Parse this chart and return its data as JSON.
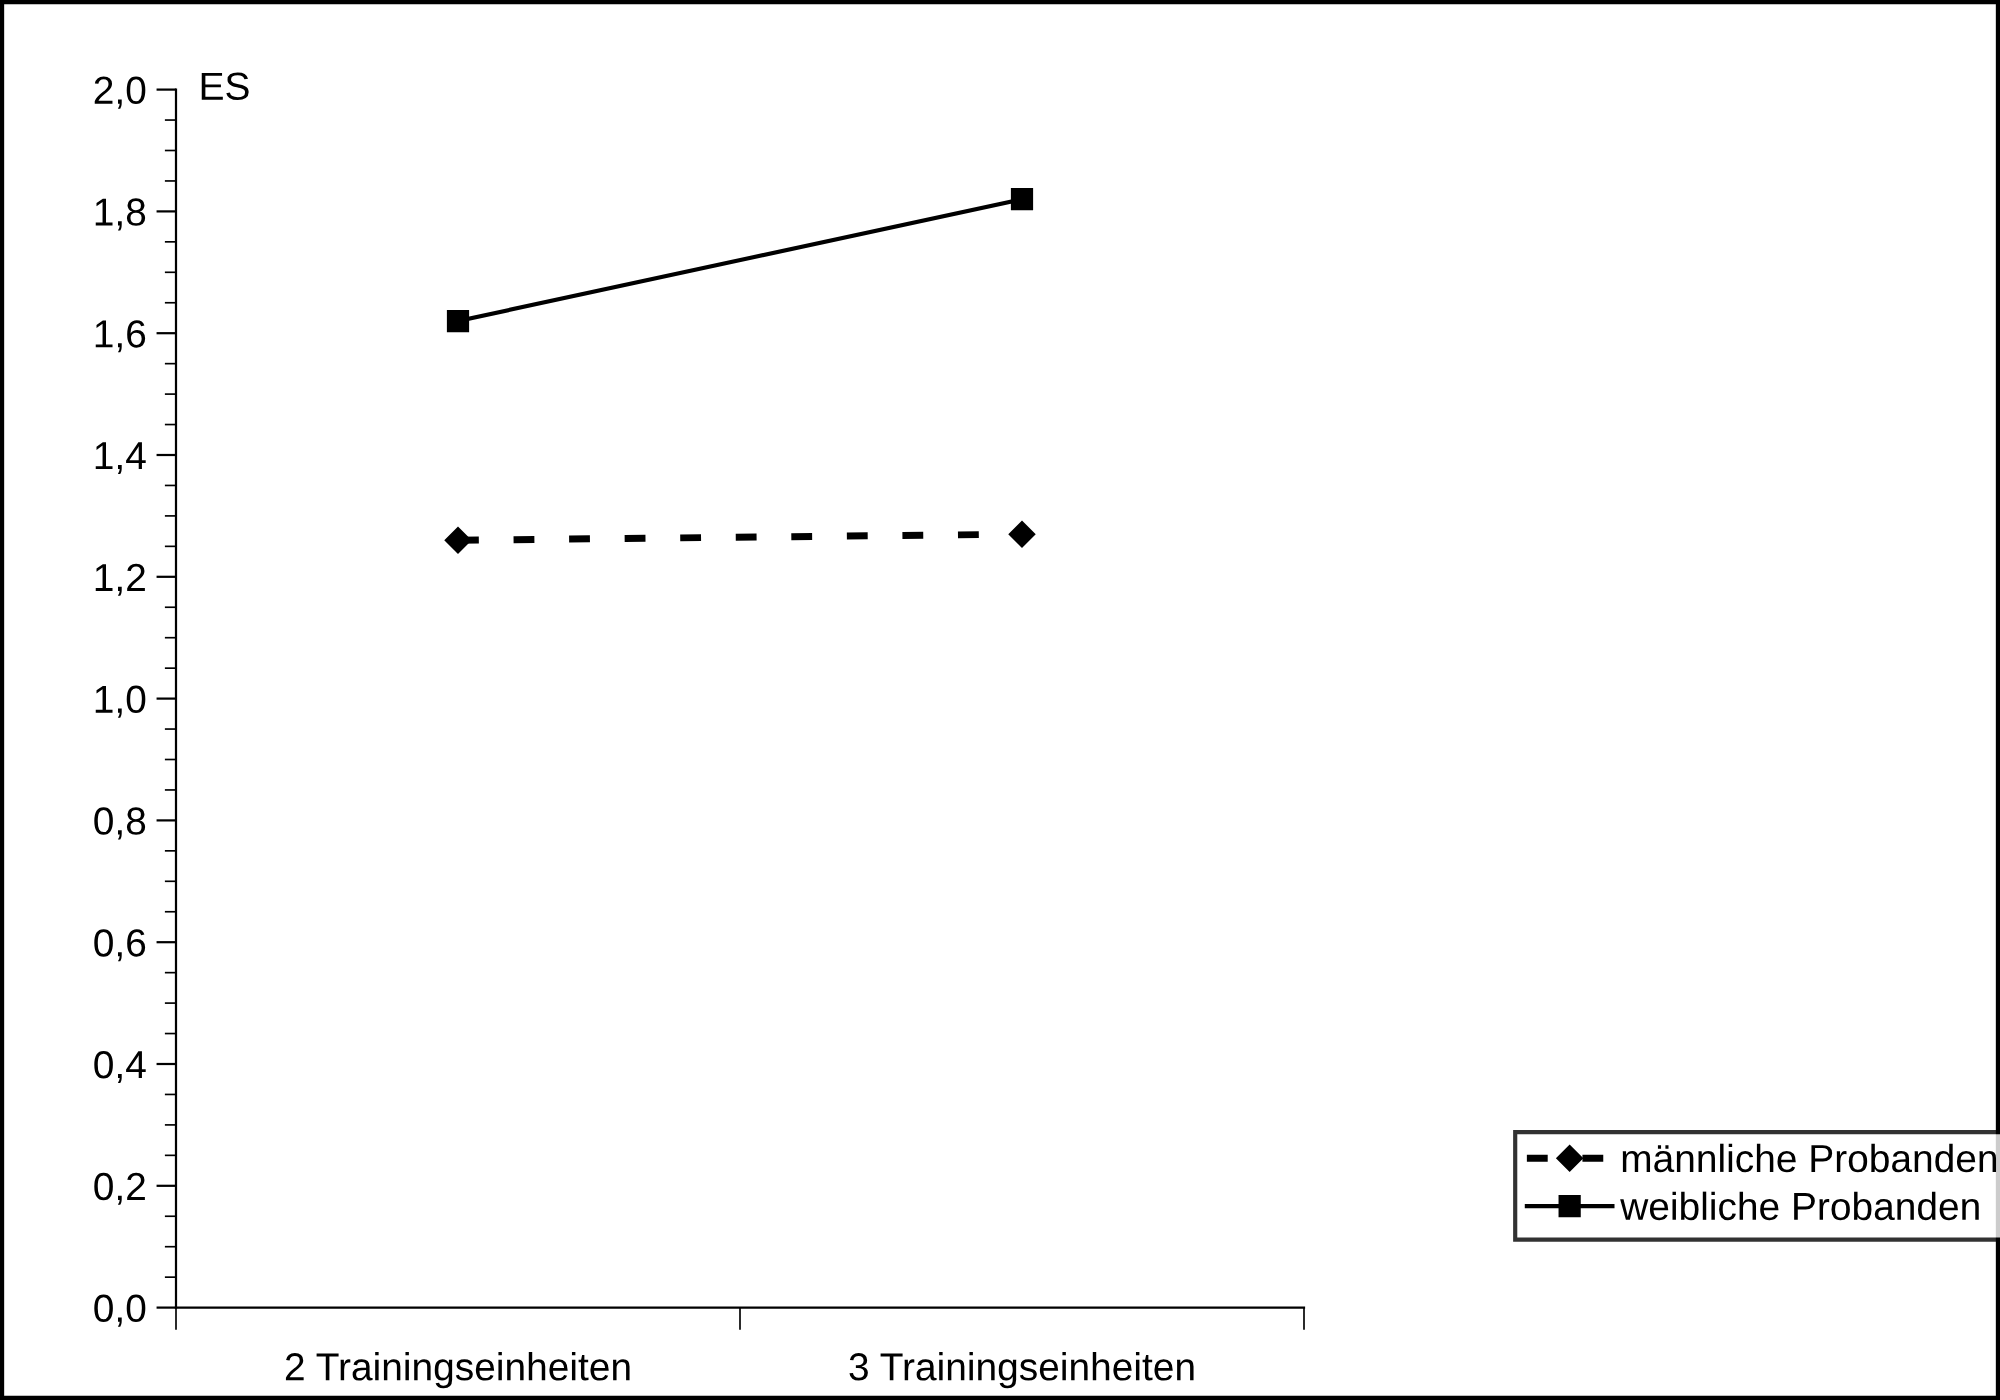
{
  "chart_data": {
    "type": "line",
    "ylabel": "ES",
    "categories": [
      "2 Trainingseinheiten",
      "3 Trainingseinheiten"
    ],
    "series": [
      {
        "name": "männliche Probanden",
        "color": "#000000",
        "values": [
          1.26,
          1.27
        ],
        "marker": "diamond",
        "line_style": "dashed"
      },
      {
        "name": "weibliche Probanden",
        "color": "#000000",
        "values": [
          1.62,
          1.82
        ],
        "marker": "square",
        "line_style": "solid"
      }
    ],
    "ylim": [
      0,
      2
    ],
    "yticks": [
      {
        "value": 0,
        "label": "0,0"
      },
      {
        "value": 0.2,
        "label": "0,2"
      },
      {
        "value": 0.4,
        "label": "0,4"
      },
      {
        "value": 0.6,
        "label": "0,6"
      },
      {
        "value": 0.8,
        "label": "0,8"
      },
      {
        "value": 1.0,
        "label": "1,0"
      },
      {
        "value": 1.2,
        "label": "1,2"
      },
      {
        "value": 1.4,
        "label": "1,4"
      },
      {
        "value": 1.6,
        "label": "1,6"
      },
      {
        "value": 1.8,
        "label": "1,8"
      },
      {
        "value": 2.0,
        "label": "2,0"
      }
    ],
    "grid": false,
    "legend": "right"
  }
}
